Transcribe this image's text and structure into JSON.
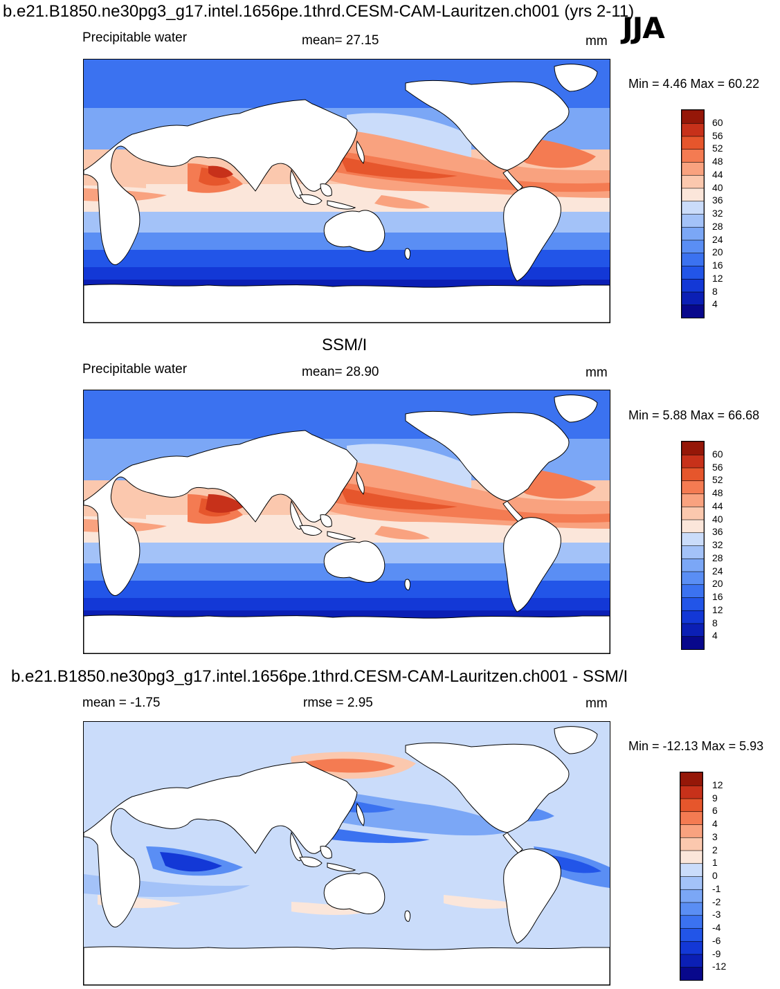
{
  "header": {
    "title": "b.e21.B1850.ne30pg3_g17.intel.1656pe.1thrd.CESM-CAM-Lauritzen.ch001 (yrs 2-11)",
    "season": "JJA"
  },
  "panels": [
    {
      "id": "model",
      "variable": "Precipitable water",
      "mean_text": "mean=  27.15",
      "units": "mm",
      "minmax_text": "Min =   4.46 Max =  60.22",
      "colorbar_labels": [
        "60",
        "56",
        "52",
        "48",
        "44",
        "40",
        "36",
        "32",
        "28",
        "24",
        "20",
        "16",
        "12",
        "8",
        "4"
      ]
    },
    {
      "id": "obs",
      "title": "SSM/I",
      "variable": "Precipitable water",
      "mean_text": "mean=  28.90",
      "units": "mm",
      "minmax_text": "Min =   5.88 Max =  66.68",
      "colorbar_labels": [
        "60",
        "56",
        "52",
        "48",
        "44",
        "40",
        "36",
        "32",
        "28",
        "24",
        "20",
        "16",
        "12",
        "8",
        "4"
      ]
    },
    {
      "id": "diff",
      "title": "b.e21.B1850.ne30pg3_g17.intel.1656pe.1thrd.CESM-CAM-Lauritzen.ch001 - SSM/I",
      "mean_text": "mean =  -1.75",
      "rmse_text": "rmse =    2.95",
      "units": "mm",
      "minmax_text": "Min = -12.13 Max =    5.93",
      "colorbar_labels": [
        "12",
        "9",
        "6",
        "4",
        "3",
        "2",
        "1",
        "0",
        "-1",
        "-2",
        "-3",
        "-4",
        "-6",
        "-9",
        "-12"
      ]
    }
  ],
  "palettes": {
    "field": [
      "#08088c",
      "#0b1fb5",
      "#1338d6",
      "#2255e8",
      "#3b72f0",
      "#5a8ef4",
      "#7ba7f6",
      "#a3c2f8",
      "#cadcfa",
      "#fbe6da",
      "#fbc8ae",
      "#f9a27f",
      "#f47b52",
      "#e6562c",
      "#c7311a",
      "#951708"
    ],
    "diff": [
      "#08088c",
      "#0b1fb5",
      "#1338d6",
      "#2255e8",
      "#3b72f0",
      "#5a8ef4",
      "#7ba7f6",
      "#a3c2f8",
      "#cadcfa",
      "#fbe6da",
      "#fbc8ae",
      "#f9a27f",
      "#f47b52",
      "#e6562c",
      "#c7311a",
      "#951708"
    ]
  }
}
